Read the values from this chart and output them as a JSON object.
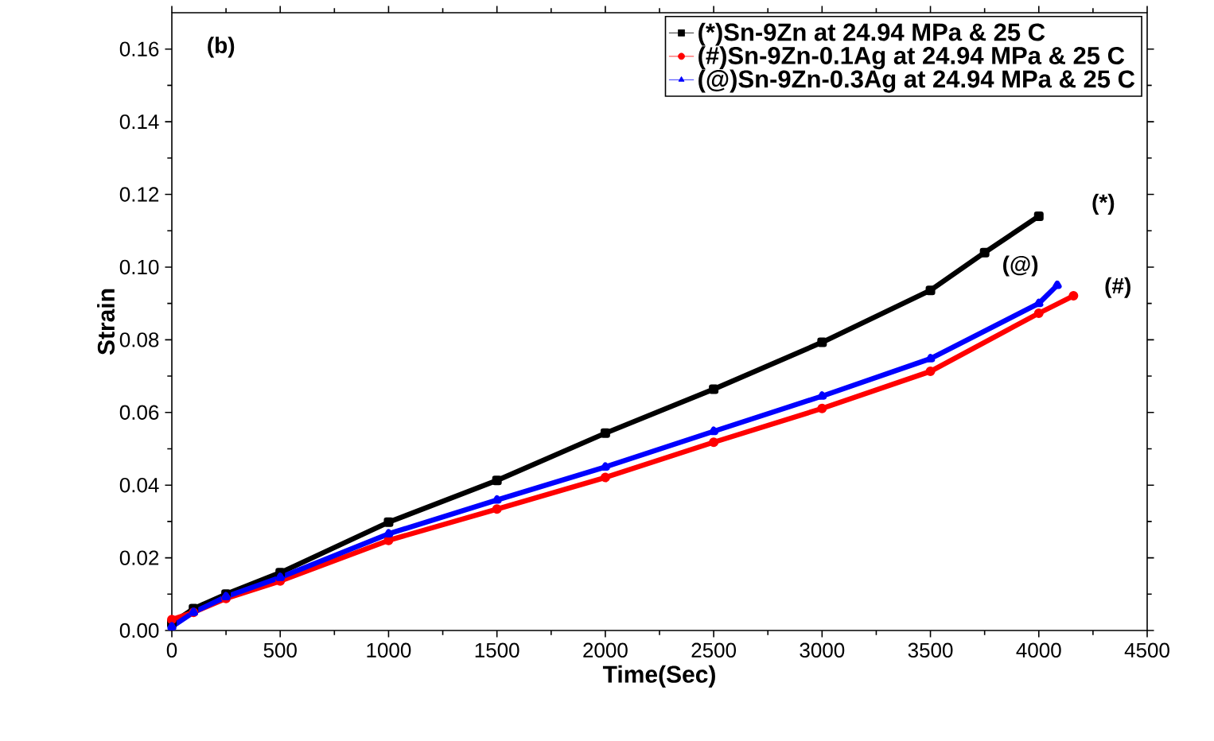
{
  "chart_data": {
    "type": "line",
    "xlabel": "Time(Sec)",
    "ylabel": "Strain",
    "xlim": [
      0,
      4500
    ],
    "ylim": [
      0,
      0.17
    ],
    "xticks": [
      0,
      500,
      1000,
      1500,
      2000,
      2500,
      3000,
      3500,
      4000,
      4500
    ],
    "yticks": [
      {
        "value": 0,
        "label": "0.00"
      },
      {
        "value": 0.02,
        "label": "0.02"
      },
      {
        "value": 0.04,
        "label": "0.04"
      },
      {
        "value": 0.06,
        "label": "0.06"
      },
      {
        "value": 0.08,
        "label": "0.08"
      },
      {
        "value": 0.1,
        "label": "0.10"
      },
      {
        "value": 0.12,
        "label": "0.12"
      },
      {
        "value": 0.14,
        "label": "0.14"
      },
      {
        "value": 0.16,
        "label": "0.16"
      }
    ],
    "legend": "top right",
    "line_style": "solid",
    "series": [
      {
        "name": "(*)Sn-9Zn at 24.94 MPa & 25 C",
        "color": "#000000",
        "marker": "square",
        "x": [
          0,
          100,
          250,
          500,
          1000,
          1500,
          2000,
          2500,
          3000,
          3500,
          3750,
          4000
        ],
        "values": [
          0.002,
          0.006,
          0.01,
          0.0159,
          0.0298,
          0.0413,
          0.0543,
          0.0664,
          0.0793,
          0.0936,
          0.104,
          0.114
        ]
      },
      {
        "name": "(#)Sn-9Zn-0.1Ag at 24.94 MPa & 25 C",
        "color": "#ff0000",
        "marker": "circle",
        "x": [
          0,
          100,
          250,
          500,
          1000,
          1500,
          2000,
          2500,
          3000,
          3500,
          4000,
          4160
        ],
        "values": [
          0.003,
          0.005,
          0.0088,
          0.0136,
          0.0248,
          0.0334,
          0.0421,
          0.0518,
          0.0611,
          0.0713,
          0.0873,
          0.0921
        ]
      },
      {
        "name": "(@)Sn-9Zn-0.3Ag at 24.94 MPa & 25 C",
        "color": "#0000ff",
        "marker": "triangle",
        "x": [
          0,
          100,
          250,
          500,
          1000,
          1500,
          2000,
          2500,
          3000,
          3500,
          4000,
          4085
        ],
        "values": [
          0.001,
          0.005,
          0.0093,
          0.0146,
          0.0266,
          0.0359,
          0.045,
          0.0548,
          0.0645,
          0.0748,
          0.09,
          0.095
        ]
      }
    ],
    "annotations": [
      "(b)",
      "(*)",
      "(@)",
      "(#)"
    ]
  }
}
